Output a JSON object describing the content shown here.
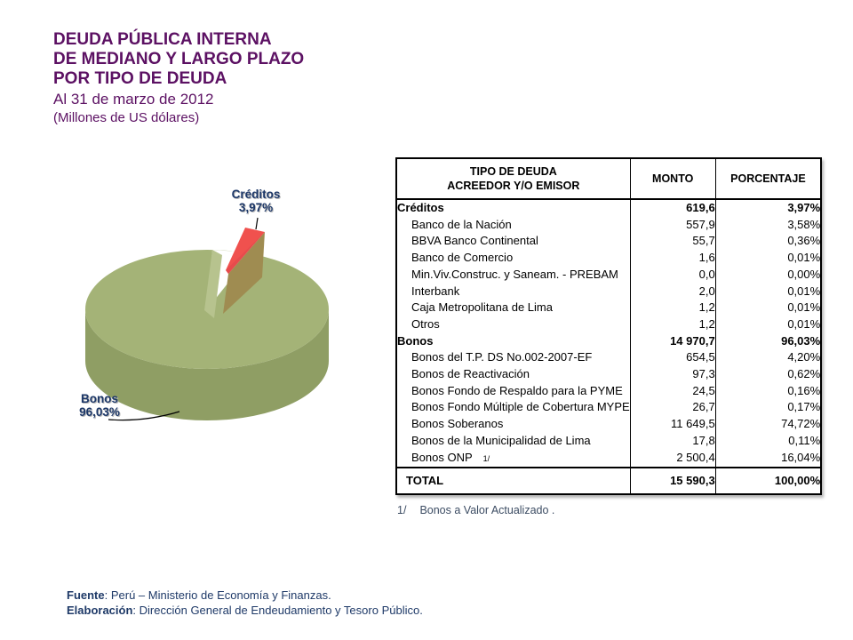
{
  "title": {
    "line1": "DEUDA PÚBLICA INTERNA",
    "line2": "DE MEDIANO Y LARGO PLAZO",
    "line3": "POR TIPO DE DEUDA",
    "date_line": "Al 31 de marzo de 2012",
    "units_line": "(Millones de US dólares)"
  },
  "chart_data": {
    "type": "pie",
    "style": "3d-exploded",
    "title": "Deuda pública interna por tipo de deuda",
    "unit": "percent",
    "slices": [
      {
        "label": "Bonos",
        "value": 96.03,
        "value_display": "96,03%",
        "amount": 14970.7,
        "color": "#a4b377"
      },
      {
        "label": "Créditos",
        "value": 3.97,
        "value_display": "3,97%",
        "amount": 619.6,
        "color": "#f0514e"
      }
    ],
    "legend_position": "data-labels"
  },
  "colors": {
    "title_purple": "#5c1163",
    "label_navy": "#1c3768",
    "pie_green_top": "#a4b377",
    "pie_green_side": "#8f9e64",
    "pie_red": "#f0514e",
    "pie_brown_side": "#9f8c51",
    "footer_navy": "#1f3a68"
  },
  "table": {
    "header": {
      "col1_line1": "TIPO DE DEUDA",
      "col1_line2": "ACREEDOR Y/O EMISOR",
      "col2": "MONTO",
      "col3": "PORCENTAJE"
    },
    "rows": [
      {
        "name": "Créditos",
        "monto": "619,6",
        "porcentaje": "3,97%",
        "bold": true,
        "indent": false
      },
      {
        "name": "Banco de la Nación",
        "monto": "557,9",
        "porcentaje": "3,58%",
        "bold": false,
        "indent": true
      },
      {
        "name": "BBVA Banco Continental",
        "monto": "55,7",
        "porcentaje": "0,36%",
        "bold": false,
        "indent": true
      },
      {
        "name": "Banco de Comercio",
        "monto": "1,6",
        "porcentaje": "0,01%",
        "bold": false,
        "indent": true
      },
      {
        "name": "Min.Viv.Construc. y Saneam. - PREBAM",
        "monto": "0,0",
        "porcentaje": "0,00%",
        "bold": false,
        "indent": true
      },
      {
        "name": "Interbank",
        "monto": "2,0",
        "porcentaje": "0,01%",
        "bold": false,
        "indent": true
      },
      {
        "name": "Caja Metropolitana de Lima",
        "monto": "1,2",
        "porcentaje": "0,01%",
        "bold": false,
        "indent": true
      },
      {
        "name": "Otros",
        "monto": "1,2",
        "porcentaje": "0,01%",
        "bold": false,
        "indent": true
      },
      {
        "name": "Bonos",
        "monto": "14 970,7",
        "porcentaje": "96,03%",
        "bold": true,
        "indent": false
      },
      {
        "name": "Bonos del T.P. DS No.002-2007-EF",
        "monto": "654,5",
        "porcentaje": "4,20%",
        "bold": false,
        "indent": true
      },
      {
        "name": "Bonos de Reactivación",
        "monto": "97,3",
        "porcentaje": "0,62%",
        "bold": false,
        "indent": true
      },
      {
        "name": "Bonos Fondo de Respaldo para la PYME",
        "monto": "24,5",
        "porcentaje": "0,16%",
        "bold": false,
        "indent": true
      },
      {
        "name": "Bonos Fondo Múltiple de Cobertura MYPE",
        "monto": "26,7",
        "porcentaje": "0,17%",
        "bold": false,
        "indent": true
      },
      {
        "name": "Bonos Soberanos",
        "monto": "11 649,5",
        "porcentaje": "74,72%",
        "bold": false,
        "indent": true
      },
      {
        "name": "Bonos de la Municipalidad de Lima",
        "monto": "17,8",
        "porcentaje": "0,11%",
        "bold": false,
        "indent": true
      },
      {
        "name": "Bonos ONP",
        "note_ref": "1/",
        "monto": "2 500,4",
        "porcentaje": "16,04%",
        "bold": false,
        "indent": true
      }
    ],
    "total_row": {
      "name": "TOTAL",
      "monto": "15 590,3",
      "porcentaje": "100,00%"
    }
  },
  "footnote": {
    "ref": "1/",
    "text": "Bonos a Valor Actualizado ."
  },
  "footer": {
    "source_label": "Fuente",
    "source_text": ": Perú – Ministerio de Economía y Finanzas.",
    "elaboration_label": "Elaboración",
    "elaboration_text": ":  Dirección General de Endeudamiento y Tesoro Público."
  }
}
